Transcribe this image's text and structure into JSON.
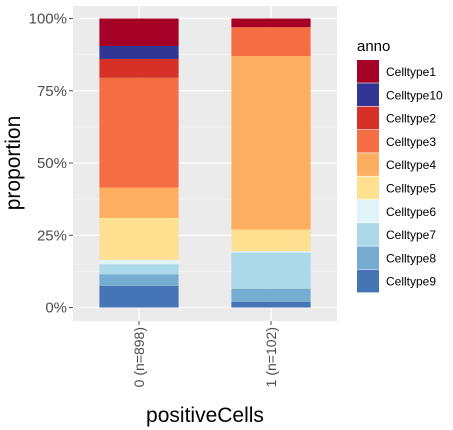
{
  "chart_data": {
    "type": "bar",
    "stacked": true,
    "xlabel": "positiveCells",
    "ylabel": "proportion",
    "categories": [
      "0 (n=898)",
      "1 (n=102)"
    ],
    "ylim": [
      0,
      1
    ],
    "yticks": [
      {
        "value": 0,
        "label": "0%"
      },
      {
        "value": 0.25,
        "label": "25%"
      },
      {
        "value": 0.5,
        "label": "50%"
      },
      {
        "value": 0.75,
        "label": "75%"
      },
      {
        "value": 1,
        "label": "100%"
      }
    ],
    "grid": true,
    "legend_title": "anno",
    "legend_position": "right",
    "series": [
      {
        "name": "Celltype1",
        "color": "#a50026",
        "values": [
          0.095,
          0.03
        ]
      },
      {
        "name": "Celltype10",
        "color": "#313695",
        "values": [
          0.045,
          0.0
        ]
      },
      {
        "name": "Celltype2",
        "color": "#d73027",
        "values": [
          0.065,
          0.0
        ]
      },
      {
        "name": "Celltype3",
        "color": "#f46d43",
        "values": [
          0.38,
          0.1
        ]
      },
      {
        "name": "Celltype4",
        "color": "#fdae61",
        "values": [
          0.105,
          0.6
        ]
      },
      {
        "name": "Celltype5",
        "color": "#fee090",
        "values": [
          0.145,
          0.075
        ]
      },
      {
        "name": "Celltype6",
        "color": "#e0f3f8",
        "values": [
          0.015,
          0.005
        ]
      },
      {
        "name": "Celltype7",
        "color": "#abd9e9",
        "values": [
          0.035,
          0.125
        ]
      },
      {
        "name": "Celltype8",
        "color": "#74add1",
        "values": [
          0.04,
          0.045
        ]
      },
      {
        "name": "Celltype9",
        "color": "#4575b4",
        "values": [
          0.075,
          0.02
        ]
      }
    ]
  }
}
